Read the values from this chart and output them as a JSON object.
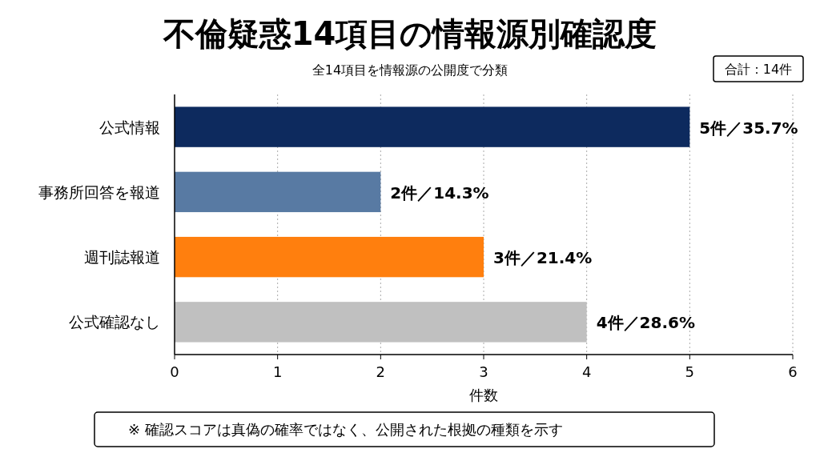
{
  "chart_data": {
    "type": "bar",
    "orientation": "horizontal",
    "title": "不倫疑惑14項目の情報源別確認度",
    "subtitle": "全14項目を情報源の公開度で分類",
    "xlabel": "件数",
    "categories": [
      "公式情報",
      "事務所回答を報道",
      "週刊誌報道",
      "公式確認なし"
    ],
    "values": [
      5,
      2,
      3,
      4
    ],
    "colors": [
      "#0d2a5e",
      "#587aa3",
      "#ff7f0e",
      "#c0c0c0"
    ],
    "value_labels": [
      "5件／35.7%",
      "2件／14.3%",
      "3件／21.4%",
      "4件／28.6%"
    ],
    "xlim": [
      0,
      6
    ],
    "xticks": [
      0,
      1,
      2,
      3,
      4,
      5,
      6
    ],
    "grid": "x",
    "annotations": [
      "合計：14件",
      "※ 確認スコアは真偽の確率ではなく、公開された根拠の種類を示す"
    ]
  }
}
